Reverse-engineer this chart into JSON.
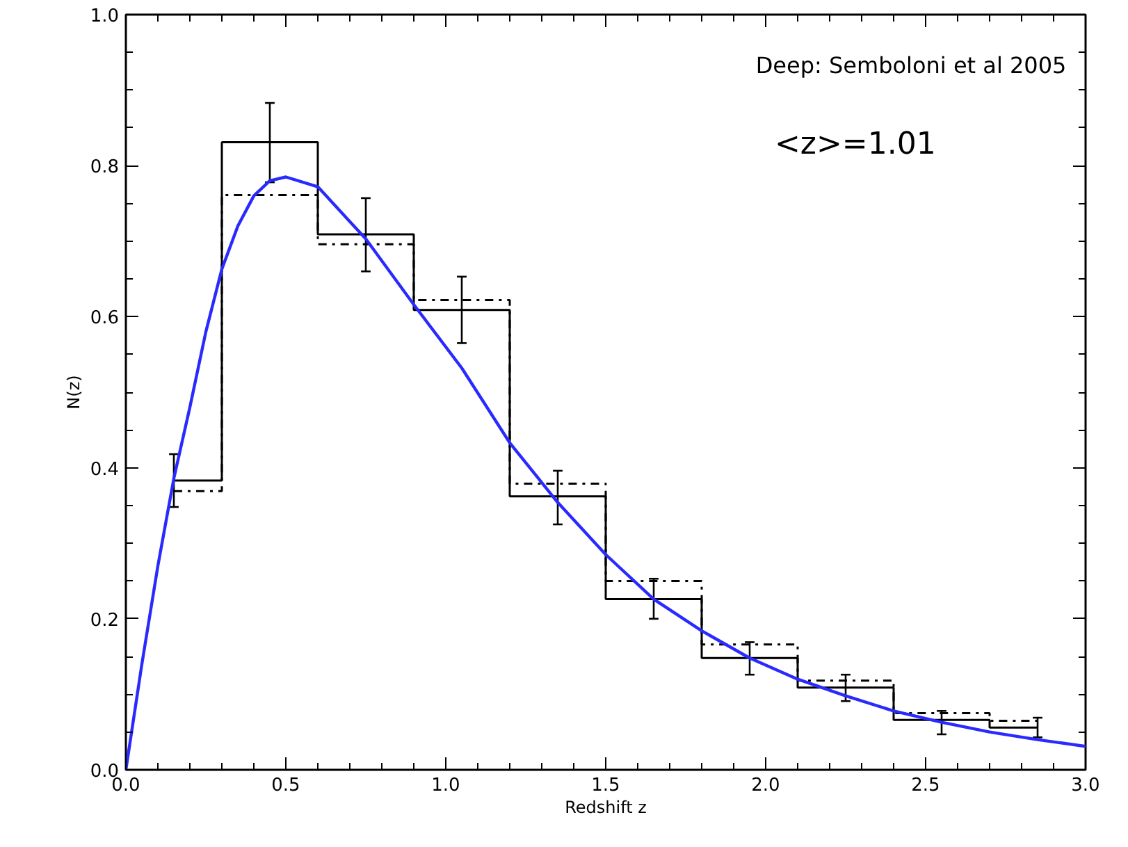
{
  "chart_data": {
    "type": "step",
    "xlabel": "Redshift z",
    "ylabel": "N(z)",
    "annotations": [
      "Deep: Semboloni et al 2005",
      "<z>=1.01"
    ],
    "xlim": [
      0,
      3
    ],
    "ylim": [
      0,
      1
    ],
    "xticks": [
      {
        "value": 0,
        "label": "0.0"
      },
      {
        "value": 0.5,
        "label": "0.5"
      },
      {
        "value": 1,
        "label": "1.0"
      },
      {
        "value": 1.5,
        "label": "1.5"
      },
      {
        "value": 2,
        "label": "2.0"
      },
      {
        "value": 2.5,
        "label": "2.5"
      },
      {
        "value": 3,
        "label": "3.0"
      }
    ],
    "yticks": [
      {
        "value": 0,
        "label": "0.0"
      },
      {
        "value": 0.2,
        "label": "0.2"
      },
      {
        "value": 0.4,
        "label": "0.4"
      },
      {
        "value": 0.6,
        "label": "0.6"
      },
      {
        "value": 0.8,
        "label": "0.8"
      },
      {
        "value": 1,
        "label": "1.0"
      }
    ],
    "grid": false,
    "series": [
      {
        "color": "#000000",
        "line_style": "solid",
        "x": [
          0.15,
          0.45,
          0.75,
          1.05,
          1.35,
          1.65,
          1.95,
          2.25,
          2.55,
          2.85
        ],
        "values": [
          0.383,
          0.831,
          0.709,
          0.609,
          0.362,
          0.226,
          0.148,
          0.109,
          0.066,
          0.056
        ],
        "errors": [
          [
            0.348,
            0.418
          ],
          [
            0.778,
            0.883
          ],
          [
            0.66,
            0.757
          ],
          [
            0.565,
            0.653
          ],
          [
            0.325,
            0.396
          ],
          [
            0.2,
            0.253
          ],
          [
            0.126,
            0.169
          ],
          [
            0.091,
            0.126
          ],
          [
            0.047,
            0.078
          ],
          [
            0.043,
            0.069
          ]
        ]
      },
      {
        "color": "#000000",
        "line_style": "dashdot",
        "x": [
          0.15,
          0.45,
          0.75,
          1.05,
          1.35,
          1.65,
          1.95,
          2.25,
          2.55,
          2.85
        ],
        "values": [
          0.369,
          0.761,
          0.696,
          0.622,
          0.379,
          0.25,
          0.166,
          0.118,
          0.075,
          0.065
        ]
      },
      {
        "type": "line",
        "color": "#2a2aff",
        "line_style": "solid",
        "x": [
          0,
          0.05,
          0.1,
          0.15,
          0.2,
          0.25,
          0.3,
          0.35,
          0.4,
          0.45,
          0.5,
          0.6,
          0.75,
          0.9,
          1.05,
          1.2,
          1.35,
          1.5,
          1.65,
          1.8,
          1.95,
          2.1,
          2.25,
          2.4,
          2.55,
          2.7,
          2.85,
          3.0
        ],
        "values": [
          0,
          0.14,
          0.27,
          0.386,
          0.48,
          0.58,
          0.663,
          0.72,
          0.76,
          0.78,
          0.785,
          0.772,
          0.703,
          0.616,
          0.532,
          0.433,
          0.354,
          0.285,
          0.226,
          0.184,
          0.148,
          0.12,
          0.098,
          0.078,
          0.063,
          0.05,
          0.04,
          0.031
        ]
      }
    ]
  }
}
